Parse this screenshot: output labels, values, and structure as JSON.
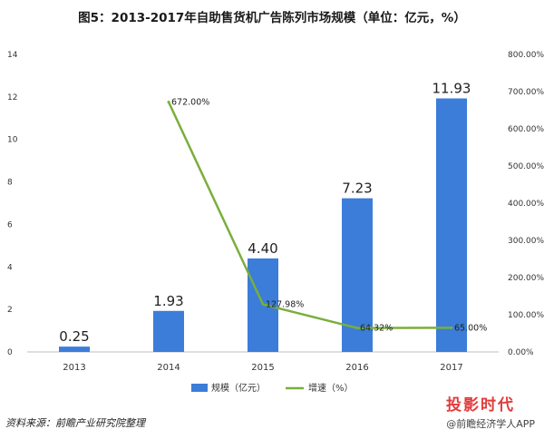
{
  "chart_data": {
    "type": "bar+line",
    "title": "图5：2013-2017年自助售货机广告陈列市场规模（单位：亿元，%）",
    "categories": [
      "2013",
      "2014",
      "2015",
      "2016",
      "2017"
    ],
    "series": [
      {
        "name": "规模（亿元）",
        "type": "bar",
        "axis": "left",
        "color": "#3b7dd8",
        "values": [
          0.25,
          1.93,
          4.4,
          7.23,
          11.93
        ],
        "labels": [
          "0.25",
          "1.93",
          "4.40",
          "7.23",
          "11.93"
        ]
      },
      {
        "name": "增速（%）",
        "type": "line",
        "axis": "right",
        "color": "#7aae3c",
        "values": [
          null,
          672.0,
          127.98,
          64.32,
          65.0
        ],
        "labels": [
          "",
          "672.00%",
          "127.98%",
          "64.32%",
          "65.00%"
        ]
      }
    ],
    "y_left": {
      "min": 0,
      "max": 14,
      "ticks": [
        "0",
        "2",
        "4",
        "6",
        "8",
        "10",
        "12",
        "14"
      ]
    },
    "y_right": {
      "min": 0,
      "max": 800,
      "ticks": [
        "0.00%",
        "100.00%",
        "200.00%",
        "300.00%",
        "400.00%",
        "500.00%",
        "600.00%",
        "700.00%",
        "800.00%"
      ]
    },
    "legend_position": "bottom"
  },
  "source": "资料来源：前瞻产业研究院整理",
  "brand": {
    "main": "投影时代",
    "sub": "@前瞻经济学人APP"
  }
}
